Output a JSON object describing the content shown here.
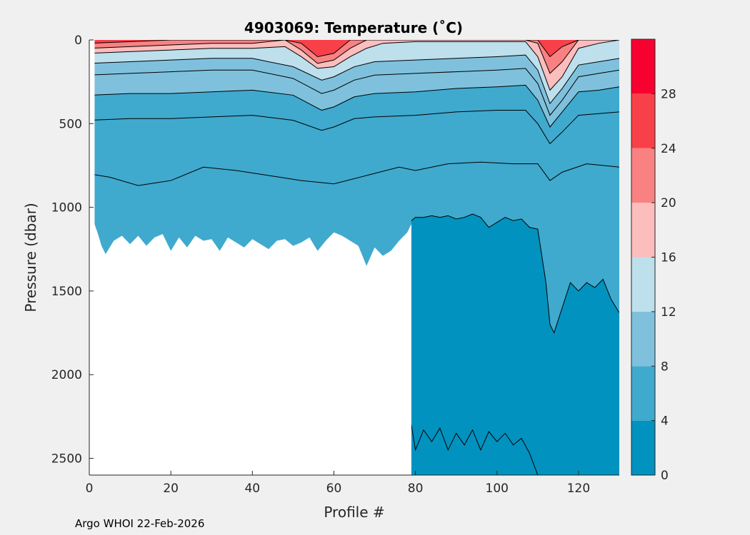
{
  "chart_data": {
    "type": "heatmap",
    "title": "4903069:  Temperature (˚C)",
    "xlabel": "Profile #",
    "ylabel": "Pressure (dbar)",
    "xlim": [
      0,
      130
    ],
    "ylim": [
      0,
      2600
    ],
    "y_reversed": true,
    "xticks": [
      0,
      20,
      40,
      60,
      80,
      100,
      120
    ],
    "yticks": [
      0,
      500,
      1000,
      1500,
      2000,
      2500
    ],
    "colorbar": {
      "levels": [
        0,
        4,
        8,
        12,
        16,
        20,
        24,
        28,
        32
      ],
      "ticks": [
        0,
        4,
        8,
        12,
        16,
        20,
        24,
        28
      ],
      "colors": [
        "#0292bf",
        "#40a9ce",
        "#7fc1dd",
        "#bedfec",
        "#fcbdbd",
        "#fa8182",
        "#f84049",
        "#f70230"
      ]
    },
    "isotherm_depths": [
      {
        "level": 4,
        "x": [
          0,
          5,
          12,
          20,
          28,
          36,
          44,
          52,
          60,
          68,
          76,
          80,
          88,
          96,
          104,
          110,
          113,
          116,
          122,
          130
        ],
        "y": [
          800,
          820,
          870,
          840,
          760,
          780,
          810,
          840,
          860,
          810,
          760,
          780,
          740,
          730,
          740,
          740,
          840,
          790,
          740,
          760
        ]
      },
      {
        "level": 6,
        "x": [
          0,
          10,
          20,
          30,
          40,
          50,
          57,
          60,
          65,
          70,
          80,
          90,
          100,
          107,
          110,
          113,
          116,
          120,
          125,
          130
        ],
        "y": [
          480,
          470,
          470,
          460,
          450,
          480,
          540,
          520,
          470,
          460,
          450,
          430,
          420,
          420,
          500,
          620,
          550,
          450,
          440,
          430
        ]
      },
      {
        "level": 8,
        "x": [
          0,
          10,
          20,
          30,
          40,
          50,
          57,
          60,
          65,
          70,
          80,
          90,
          100,
          107,
          110,
          113,
          116,
          120,
          125,
          130
        ],
        "y": [
          330,
          320,
          320,
          310,
          300,
          330,
          420,
          400,
          340,
          320,
          310,
          290,
          280,
          270,
          360,
          520,
          430,
          310,
          300,
          280
        ]
      },
      {
        "level": 10,
        "x": [
          0,
          10,
          20,
          30,
          40,
          50,
          57,
          60,
          65,
          70,
          80,
          90,
          100,
          107,
          110,
          113,
          116,
          120,
          125,
          130
        ],
        "y": [
          210,
          200,
          190,
          180,
          180,
          230,
          320,
          300,
          240,
          210,
          200,
          190,
          180,
          170,
          260,
          450,
          360,
          220,
          200,
          180
        ]
      },
      {
        "level": 12,
        "x": [
          0,
          10,
          20,
          30,
          40,
          50,
          57,
          60,
          65,
          70,
          80,
          90,
          100,
          107,
          110,
          113,
          116,
          120,
          125,
          130
        ],
        "y": [
          140,
          130,
          120,
          110,
          110,
          160,
          240,
          220,
          160,
          130,
          120,
          110,
          100,
          90,
          180,
          380,
          290,
          150,
          130,
          110
        ]
      },
      {
        "level": 16,
        "x": [
          0,
          10,
          20,
          30,
          40,
          48,
          52,
          56,
          60,
          64,
          68,
          72,
          80,
          90,
          100,
          107,
          110,
          113,
          116,
          120,
          125,
          130
        ],
        "y": [
          80,
          70,
          60,
          50,
          50,
          40,
          100,
          170,
          160,
          100,
          50,
          20,
          10,
          10,
          10,
          10,
          100,
          300,
          220,
          50,
          20,
          0
        ]
      },
      {
        "level": 20,
        "x": [
          0,
          10,
          20,
          30,
          40,
          48,
          52,
          56,
          60,
          64,
          68,
          72,
          80,
          90,
          100,
          107,
          110,
          113,
          116,
          120,
          125,
          130
        ],
        "y": [
          50,
          40,
          30,
          20,
          20,
          0,
          60,
          140,
          120,
          50,
          0,
          0,
          0,
          0,
          0,
          0,
          20,
          200,
          130,
          0,
          0,
          0
        ]
      },
      {
        "level": 24,
        "x": [
          0,
          10,
          20,
          30,
          40,
          48,
          52,
          56,
          60,
          64,
          68,
          72,
          80,
          90,
          100,
          107,
          110,
          113,
          116,
          120,
          125,
          130
        ],
        "y": [
          20,
          10,
          0,
          0,
          0,
          0,
          20,
          100,
          80,
          0,
          0,
          0,
          0,
          0,
          0,
          0,
          0,
          100,
          40,
          0,
          0,
          0
        ]
      },
      {
        "level": 2,
        "x": [
          79,
          80,
          82,
          84,
          86,
          88,
          90,
          92,
          94,
          96,
          98,
          100,
          102,
          104,
          106,
          108,
          110,
          112,
          113,
          114,
          116,
          118,
          120,
          122,
          124,
          126,
          128,
          130
        ],
        "y": [
          1080,
          1060,
          1060,
          1050,
          1060,
          1050,
          1070,
          1060,
          1040,
          1060,
          1120,
          1090,
          1060,
          1080,
          1070,
          1120,
          1130,
          1450,
          1700,
          1750,
          1600,
          1450,
          1500,
          1450,
          1480,
          1430,
          1550,
          1630
        ]
      },
      {
        "level": 1,
        "x": [
          79,
          80,
          82,
          84,
          86,
          88,
          90,
          92,
          94,
          96,
          98,
          100,
          102,
          104,
          106,
          108,
          110,
          112,
          113,
          114,
          116,
          118,
          120,
          122,
          124,
          126,
          128,
          130
        ],
        "y": [
          2300,
          2450,
          2330,
          2400,
          2320,
          2450,
          2350,
          2420,
          2330,
          2450,
          2340,
          2400,
          2350,
          2420,
          2380,
          2470,
          2600,
          2600,
          2600,
          2600,
          2600,
          2600,
          2600,
          2600,
          2600,
          2600,
          2600,
          2600
        ]
      }
    ],
    "max_pressure": {
      "x": [
        0,
        1,
        2,
        3,
        4,
        6,
        8,
        10,
        12,
        14,
        16,
        18,
        20,
        22,
        24,
        26,
        28,
        30,
        32,
        34,
        36,
        38,
        40,
        42,
        44,
        46,
        48,
        50,
        52,
        54,
        56,
        58,
        60,
        62,
        64,
        66,
        68,
        70,
        72,
        74,
        76,
        78,
        79
      ],
      "y": [
        1000,
        1080,
        1150,
        1230,
        1280,
        1200,
        1170,
        1220,
        1170,
        1230,
        1180,
        1160,
        1260,
        1180,
        1240,
        1170,
        1200,
        1190,
        1260,
        1180,
        1210,
        1240,
        1190,
        1220,
        1250,
        1200,
        1190,
        1230,
        1210,
        1180,
        1260,
        1200,
        1150,
        1170,
        1200,
        1230,
        1350,
        1240,
        1290,
        1260,
        1200,
        1150,
        1100
      ]
    }
  },
  "footer": "Argo WHOI 22-Feb-2026"
}
